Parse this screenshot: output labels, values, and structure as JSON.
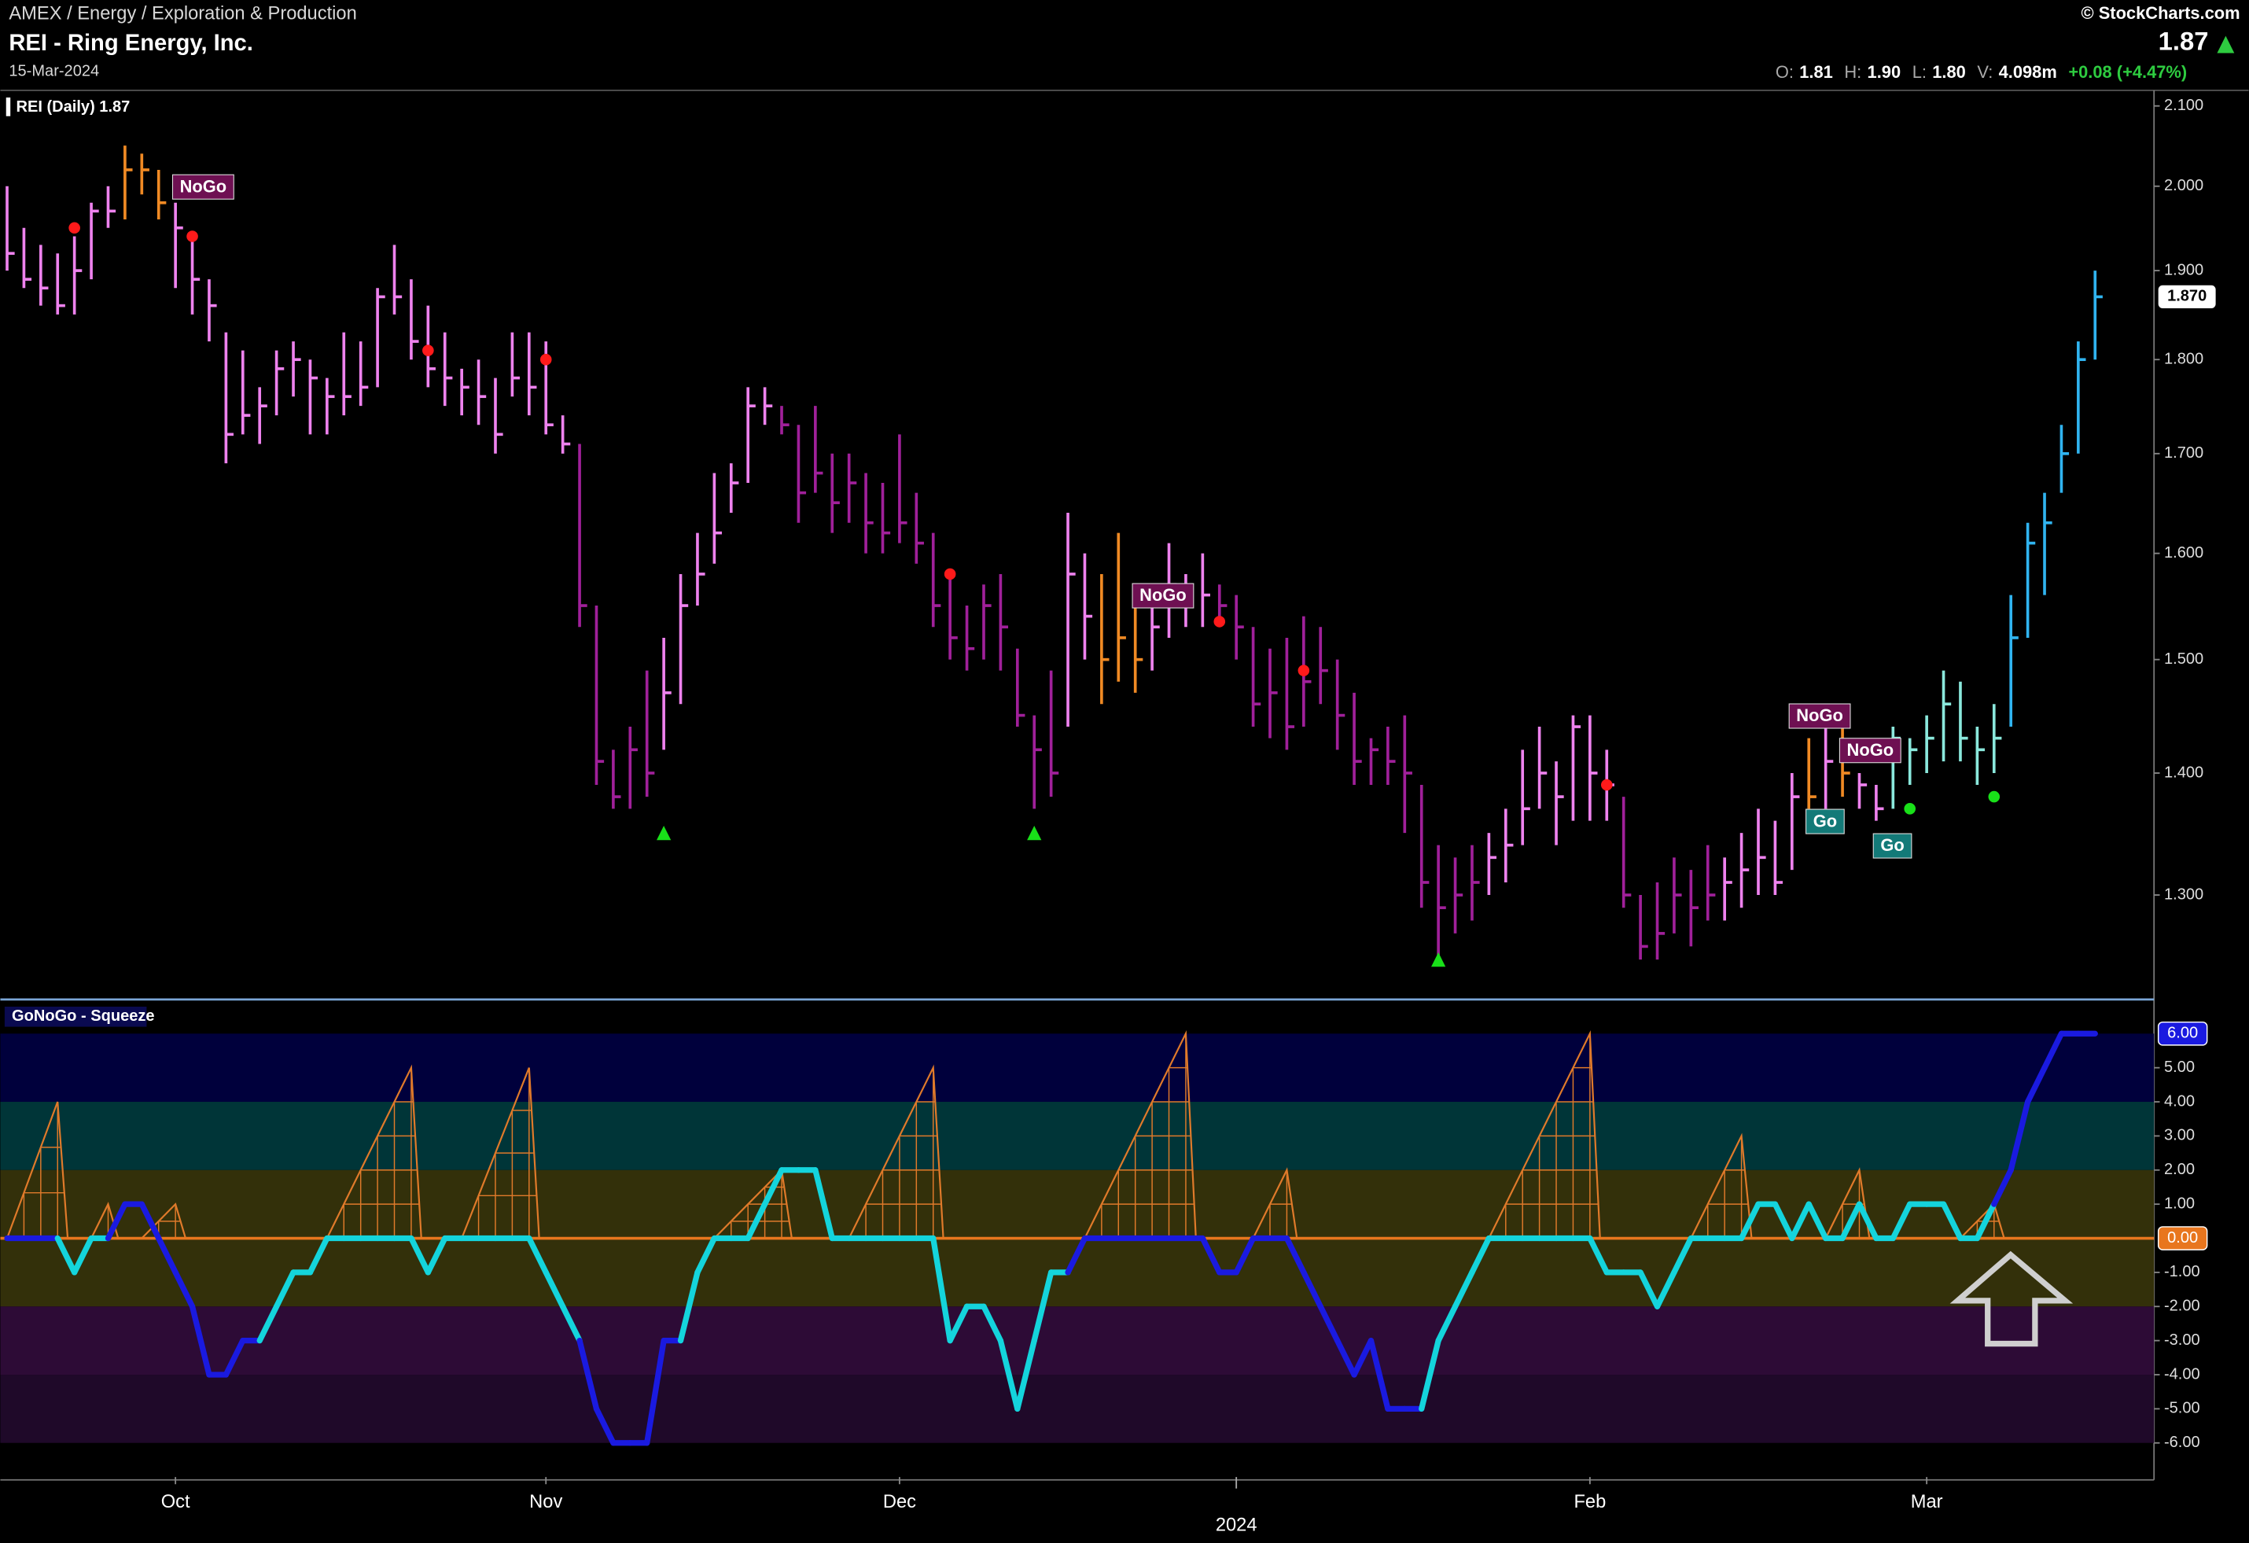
{
  "header": {
    "path": "AMEX / Energy / Exploration & Production",
    "title": "REI - Ring Energy, Inc.",
    "date": "15-Mar-2024",
    "credit": "© StockCharts.com",
    "last": "1.87",
    "quote": [
      {
        "label": "O:",
        "value": "1.81"
      },
      {
        "label": "H:",
        "value": "1.90"
      },
      {
        "label": "L:",
        "value": "1.80"
      },
      {
        "label": "V:",
        "value": "4.098m"
      }
    ],
    "change": "+0.08 (+4.47%)"
  },
  "chart_data": [
    {
      "type": "ohlc",
      "title": "REI (Daily) 1.87",
      "last_label": "1.870",
      "log_scale": true,
      "ylim": [
        1.22,
        2.12
      ],
      "yticks": [
        {
          "value": 2.1,
          "label": "2.100"
        },
        {
          "value": 2.0,
          "label": "2.000"
        },
        {
          "value": 1.9,
          "label": "1.900"
        },
        {
          "value": 1.8,
          "label": "1.800"
        },
        {
          "value": 1.7,
          "label": "1.700"
        },
        {
          "value": 1.6,
          "label": "1.600"
        },
        {
          "value": 1.5,
          "label": "1.500"
        },
        {
          "value": 1.4,
          "label": "1.400"
        },
        {
          "value": 1.3,
          "label": "1.300"
        }
      ],
      "xlim": [
        -0.4,
        127.5
      ],
      "xticks": [
        {
          "value": 10,
          "label": "Oct"
        },
        {
          "value": 32,
          "label": "Nov"
        },
        {
          "value": 53,
          "label": "Dec"
        },
        {
          "value": 94,
          "label": "Feb"
        },
        {
          "value": 114,
          "label": "Mar"
        }
      ],
      "year_tick": {
        "value": 73,
        "label": "2024"
      },
      "high": [
        2.0,
        1.95,
        1.93,
        1.92,
        1.94,
        1.98,
        2.0,
        2.05,
        2.04,
        2.02,
        1.98,
        1.94,
        1.89,
        1.83,
        1.81,
        1.77,
        1.81,
        1.82,
        1.8,
        1.78,
        1.83,
        1.82,
        1.88,
        1.93,
        1.89,
        1.86,
        1.83,
        1.79,
        1.8,
        1.78,
        1.83,
        1.83,
        1.82,
        1.74,
        1.71,
        1.55,
        1.42,
        1.44,
        1.49,
        1.52,
        1.58,
        1.62,
        1.68,
        1.69,
        1.77,
        1.77,
        1.75,
        1.73,
        1.75,
        1.7,
        1.7,
        1.68,
        1.67,
        1.72,
        1.66,
        1.62,
        1.58,
        1.55,
        1.57,
        1.58,
        1.51,
        1.45,
        1.49,
        1.64,
        1.6,
        1.58,
        1.62,
        1.57,
        1.56,
        1.61,
        1.58,
        1.6,
        1.57,
        1.56,
        1.53,
        1.51,
        1.52,
        1.54,
        1.53,
        1.5,
        1.47,
        1.43,
        1.44,
        1.45,
        1.39,
        1.34,
        1.33,
        1.34,
        1.35,
        1.37,
        1.42,
        1.44,
        1.41,
        1.45,
        1.45,
        1.42,
        1.38,
        1.3,
        1.31,
        1.33,
        1.32,
        1.34,
        1.33,
        1.35,
        1.37,
        1.36,
        1.4,
        1.43,
        1.46,
        1.45,
        1.4,
        1.39,
        1.44,
        1.43,
        1.45,
        1.49,
        1.48,
        1.44,
        1.46,
        1.56,
        1.63,
        1.66,
        1.73,
        1.82,
        1.9
      ],
      "low": [
        1.9,
        1.88,
        1.86,
        1.85,
        1.85,
        1.89,
        1.95,
        1.96,
        1.99,
        1.96,
        1.88,
        1.85,
        1.82,
        1.69,
        1.72,
        1.71,
        1.74,
        1.76,
        1.72,
        1.72,
        1.74,
        1.75,
        1.77,
        1.85,
        1.8,
        1.77,
        1.75,
        1.74,
        1.73,
        1.7,
        1.76,
        1.74,
        1.72,
        1.7,
        1.53,
        1.39,
        1.37,
        1.37,
        1.38,
        1.42,
        1.46,
        1.55,
        1.59,
        1.64,
        1.67,
        1.73,
        1.72,
        1.63,
        1.66,
        1.62,
        1.63,
        1.6,
        1.6,
        1.61,
        1.59,
        1.53,
        1.5,
        1.49,
        1.5,
        1.49,
        1.44,
        1.37,
        1.38,
        1.44,
        1.5,
        1.46,
        1.48,
        1.47,
        1.49,
        1.52,
        1.53,
        1.53,
        1.53,
        1.5,
        1.44,
        1.43,
        1.42,
        1.44,
        1.46,
        1.42,
        1.39,
        1.39,
        1.39,
        1.35,
        1.29,
        1.25,
        1.27,
        1.28,
        1.3,
        1.31,
        1.34,
        1.37,
        1.34,
        1.36,
        1.36,
        1.36,
        1.29,
        1.25,
        1.25,
        1.27,
        1.26,
        1.28,
        1.28,
        1.29,
        1.3,
        1.3,
        1.32,
        1.37,
        1.37,
        1.38,
        1.37,
        1.36,
        1.37,
        1.39,
        1.4,
        1.41,
        1.41,
        1.39,
        1.4,
        1.44,
        1.52,
        1.56,
        1.66,
        1.7,
        1.8
      ],
      "close": [
        1.92,
        1.89,
        1.88,
        1.86,
        1.9,
        1.97,
        1.97,
        2.02,
        2.02,
        1.98,
        1.95,
        1.89,
        1.86,
        1.72,
        1.74,
        1.75,
        1.79,
        1.8,
        1.78,
        1.76,
        1.76,
        1.77,
        1.87,
        1.87,
        1.82,
        1.79,
        1.78,
        1.77,
        1.76,
        1.72,
        1.78,
        1.77,
        1.73,
        1.71,
        1.55,
        1.41,
        1.38,
        1.42,
        1.4,
        1.47,
        1.55,
        1.58,
        1.62,
        1.67,
        1.75,
        1.75,
        1.73,
        1.66,
        1.68,
        1.65,
        1.67,
        1.63,
        1.62,
        1.63,
        1.61,
        1.55,
        1.52,
        1.51,
        1.55,
        1.53,
        1.45,
        1.42,
        1.4,
        1.58,
        1.54,
        1.5,
        1.52,
        1.5,
        1.53,
        1.57,
        1.55,
        1.56,
        1.55,
        1.53,
        1.46,
        1.47,
        1.44,
        1.48,
        1.49,
        1.45,
        1.41,
        1.42,
        1.41,
        1.4,
        1.31,
        1.29,
        1.3,
        1.31,
        1.33,
        1.34,
        1.37,
        1.4,
        1.38,
        1.44,
        1.4,
        1.39,
        1.3,
        1.26,
        1.27,
        1.3,
        1.29,
        1.3,
        1.31,
        1.32,
        1.33,
        1.31,
        1.38,
        1.38,
        1.41,
        1.4,
        1.39,
        1.37,
        1.43,
        1.42,
        1.43,
        1.46,
        1.43,
        1.42,
        1.43,
        1.52,
        1.61,
        1.63,
        1.7,
        1.8,
        1.87
      ],
      "colors": [
        "#ee82ee",
        "#ee82ee",
        "#ee82ee",
        "#ee82ee",
        "#ee82ee",
        "#ee82ee",
        "#ee82ee",
        "#f08a24",
        "#f08a24",
        "#f08a24",
        "#ee82ee",
        "#ee82ee",
        "#ee82ee",
        "#ee82ee",
        "#ee82ee",
        "#ee82ee",
        "#ee82ee",
        "#ee82ee",
        "#ee82ee",
        "#ee82ee",
        "#ee82ee",
        "#ee82ee",
        "#ee82ee",
        "#ee82ee",
        "#ee82ee",
        "#ee82ee",
        "#ee82ee",
        "#ee82ee",
        "#ee82ee",
        "#ee82ee",
        "#ee82ee",
        "#ee82ee",
        "#ee82ee",
        "#ee82ee",
        "#a0209a",
        "#a0209a",
        "#a0209a",
        "#a0209a",
        "#a0209a",
        "#ee82ee",
        "#ee82ee",
        "#ee82ee",
        "#ee82ee",
        "#ee82ee",
        "#ee82ee",
        "#ee82ee",
        "#a0209a",
        "#a0209a",
        "#a0209a",
        "#a0209a",
        "#a0209a",
        "#a0209a",
        "#a0209a",
        "#a0209a",
        "#a0209a",
        "#a0209a",
        "#a0209a",
        "#a0209a",
        "#a0209a",
        "#a0209a",
        "#a0209a",
        "#a0209a",
        "#a0209a",
        "#ee82ee",
        "#ee82ee",
        "#f08a24",
        "#f08a24",
        "#f08a24",
        "#ee82ee",
        "#ee82ee",
        "#ee82ee",
        "#ee82ee",
        "#a0209a",
        "#a0209a",
        "#a0209a",
        "#a0209a",
        "#a0209a",
        "#a0209a",
        "#a0209a",
        "#a0209a",
        "#a0209a",
        "#a0209a",
        "#a0209a",
        "#a0209a",
        "#a0209a",
        "#a0209a",
        "#a0209a",
        "#a0209a",
        "#ee82ee",
        "#ee82ee",
        "#ee82ee",
        "#ee82ee",
        "#ee82ee",
        "#ee82ee",
        "#ee82ee",
        "#ee82ee",
        "#a0209a",
        "#a0209a",
        "#a0209a",
        "#a0209a",
        "#a0209a",
        "#a0209a",
        "#ee82ee",
        "#ee82ee",
        "#ee82ee",
        "#ee82ee",
        "#ee82ee",
        "#f08a24",
        "#ee82ee",
        "#f08a24",
        "#ee82ee",
        "#ee82ee",
        "#8ae8dc",
        "#8ae8dc",
        "#8ae8dc",
        "#8ae8dc",
        "#8ae8dc",
        "#8ae8dc",
        "#8ae8dc",
        "#30b4f0",
        "#30b4f0",
        "#30b4f0",
        "#30b4f0",
        "#30b4f0",
        "#30b4f0"
      ],
      "markers": [
        {
          "shape": "dot",
          "color": "#ff1a1a",
          "x": [
            4,
            11,
            25,
            32,
            56,
            72,
            77,
            95
          ],
          "y": [
            1.95,
            1.94,
            1.81,
            1.8,
            1.58,
            1.535,
            1.49,
            1.39
          ]
        },
        {
          "shape": "triangle",
          "color": "#19e019",
          "x": [
            39,
            61,
            85
          ],
          "y": [
            1.35,
            1.35,
            1.25
          ]
        },
        {
          "shape": "dot",
          "color": "#19e019",
          "x": [
            113,
            118
          ],
          "y": [
            1.37,
            1.38
          ]
        }
      ],
      "labels": [
        {
          "text": "NoGo",
          "x": 10,
          "y": 2.0,
          "color": "#6e1052"
        },
        {
          "text": "NoGo",
          "x": 67,
          "y": 1.56,
          "color": "#6e1052"
        },
        {
          "text": "NoGo",
          "x": 106,
          "y": 1.45,
          "color": "#6e1052"
        },
        {
          "text": "NoGo",
          "x": 109,
          "y": 1.42,
          "color": "#6e1052"
        },
        {
          "text": "Go",
          "x": 107,
          "y": 1.36,
          "color": "#137a78"
        },
        {
          "text": "Go",
          "x": 111,
          "y": 1.34,
          "color": "#137a78"
        }
      ]
    },
    {
      "type": "line",
      "title": "GoNoGo - Squeeze",
      "ylim": [
        -7,
        7
      ],
      "yticks": [
        {
          "value": 5,
          "label": "5.00"
        },
        {
          "value": 4,
          "label": "4.00"
        },
        {
          "value": 3,
          "label": "3.00"
        },
        {
          "value": 2,
          "label": "2.00"
        },
        {
          "value": 1,
          "label": "1.00"
        },
        {
          "value": -1,
          "label": "-1.00"
        },
        {
          "value": -2,
          "label": "-2.00"
        },
        {
          "value": -3,
          "label": "-3.00"
        },
        {
          "value": -4,
          "label": "-4.00"
        },
        {
          "value": -5,
          "label": "-5.00"
        },
        {
          "value": -6,
          "label": "-6.00"
        }
      ],
      "tags": [
        {
          "value": 6,
          "label": "6.00",
          "color": "#1a1ae0"
        },
        {
          "value": 0,
          "label": "0.00",
          "color": "#e8761e"
        }
      ],
      "bands": [
        {
          "from": 4,
          "to": 6,
          "color": "#00003c"
        },
        {
          "from": 2,
          "to": 4,
          "color": "#003538"
        },
        {
          "from": -2,
          "to": 2,
          "color": "#33300a"
        },
        {
          "from": -4,
          "to": -2,
          "color": "#2d0b36"
        },
        {
          "from": -6,
          "to": -4,
          "color": "#1f0929"
        }
      ],
      "values": [
        0,
        0,
        0,
        0,
        -1,
        0,
        0,
        1,
        1,
        0,
        -1,
        -2,
        -4,
        -4,
        -3,
        -3,
        -2,
        -1,
        -1,
        0,
        0,
        0,
        0,
        0,
        0,
        -1,
        0,
        0,
        0,
        0,
        0,
        0,
        -1,
        -2,
        -3,
        -5,
        -6,
        -6,
        -6,
        -3,
        -3,
        -1,
        0,
        0,
        0,
        1,
        2,
        2,
        2,
        0,
        0,
        0,
        0,
        0,
        0,
        0,
        -3,
        -2,
        -2,
        -3,
        -5,
        -3,
        -1,
        -1,
        0,
        0,
        0,
        0,
        0,
        0,
        0,
        0,
        -1,
        -1,
        0,
        0,
        0,
        -1,
        -2,
        -3,
        -4,
        -3,
        -5,
        -5,
        -5,
        -3,
        -2,
        -1,
        0,
        0,
        0,
        0,
        0,
        0,
        0,
        -1,
        -1,
        -1,
        -2,
        -1,
        0,
        0,
        0,
        0,
        1,
        1,
        0,
        1,
        0,
        0,
        1,
        0,
        0,
        1,
        1,
        1,
        0,
        0,
        1,
        2,
        4,
        5,
        6,
        6,
        6
      ],
      "colors": [
        "#1a1ae0",
        "#1a1ae0",
        "#1a1ae0",
        "#1a1ae0",
        "#14d4dc",
        "#14d4dc",
        "#14d4dc",
        "#1a1ae0",
        "#1a1ae0",
        "#1a1ae0",
        "#1a1ae0",
        "#1a1ae0",
        "#1a1ae0",
        "#1a1ae0",
        "#1a1ae0",
        "#1a1ae0",
        "#14d4dc",
        "#14d4dc",
        "#14d4dc",
        "#14d4dc",
        "#14d4dc",
        "#14d4dc",
        "#14d4dc",
        "#14d4dc",
        "#14d4dc",
        "#14d4dc",
        "#14d4dc",
        "#14d4dc",
        "#14d4dc",
        "#14d4dc",
        "#14d4dc",
        "#14d4dc",
        "#14d4dc",
        "#14d4dc",
        "#14d4dc",
        "#1a1ae0",
        "#1a1ae0",
        "#1a1ae0",
        "#1a1ae0",
        "#1a1ae0",
        "#1a1ae0",
        "#14d4dc",
        "#14d4dc",
        "#14d4dc",
        "#14d4dc",
        "#14d4dc",
        "#14d4dc",
        "#14d4dc",
        "#14d4dc",
        "#14d4dc",
        "#14d4dc",
        "#14d4dc",
        "#14d4dc",
        "#14d4dc",
        "#14d4dc",
        "#14d4dc",
        "#14d4dc",
        "#14d4dc",
        "#14d4dc",
        "#14d4dc",
        "#14d4dc",
        "#14d4dc",
        "#14d4dc",
        "#14d4dc",
        "#1a1ae0",
        "#1a1ae0",
        "#1a1ae0",
        "#1a1ae0",
        "#1a1ae0",
        "#1a1ae0",
        "#1a1ae0",
        "#1a1ae0",
        "#1a1ae0",
        "#1a1ae0",
        "#1a1ae0",
        "#1a1ae0",
        "#1a1ae0",
        "#1a1ae0",
        "#1a1ae0",
        "#1a1ae0",
        "#1a1ae0",
        "#1a1ae0",
        "#1a1ae0",
        "#1a1ae0",
        "#1a1ae0",
        "#14d4dc",
        "#14d4dc",
        "#14d4dc",
        "#14d4dc",
        "#14d4dc",
        "#14d4dc",
        "#14d4dc",
        "#14d4dc",
        "#14d4dc",
        "#14d4dc",
        "#14d4dc",
        "#14d4dc",
        "#14d4dc",
        "#14d4dc",
        "#14d4dc",
        "#14d4dc",
        "#14d4dc",
        "#14d4dc",
        "#14d4dc",
        "#14d4dc",
        "#14d4dc",
        "#14d4dc",
        "#14d4dc",
        "#14d4dc",
        "#14d4dc",
        "#14d4dc",
        "#14d4dc",
        "#14d4dc",
        "#14d4dc",
        "#14d4dc",
        "#14d4dc",
        "#14d4dc",
        "#14d4dc",
        "#14d4dc",
        "#1a1ae0",
        "#1a1ae0",
        "#1a1ae0",
        "#1a1ae0",
        "#1a1ae0",
        "#1a1ae0"
      ],
      "squeeze": {
        "color": "#e07a2a",
        "peaks": [
          {
            "from": 0,
            "x": 3,
            "value": 4
          },
          {
            "from": 5,
            "x": 6,
            "value": 1
          },
          {
            "from": 8,
            "x": 10,
            "value": 1
          },
          {
            "from": 19,
            "x": 24,
            "value": 5
          },
          {
            "from": 27,
            "x": 31,
            "value": 5
          },
          {
            "from": 42,
            "x": 46,
            "value": 2
          },
          {
            "from": 50,
            "x": 55,
            "value": 5
          },
          {
            "from": 64,
            "x": 70,
            "value": 6
          },
          {
            "from": 74,
            "x": 76,
            "value": 2
          },
          {
            "from": 88,
            "x": 94,
            "value": 6
          },
          {
            "from": 100,
            "x": 103,
            "value": 3
          },
          {
            "from": 108,
            "x": 110,
            "value": 2
          },
          {
            "from": 116,
            "x": 118,
            "value": 1
          }
        ]
      }
    }
  ]
}
